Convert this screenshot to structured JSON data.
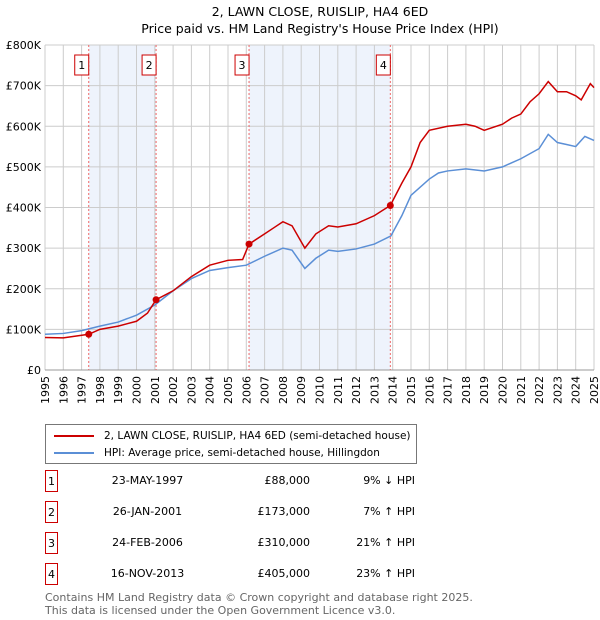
{
  "chart_data": {
    "type": "line",
    "title": "2, LAWN CLOSE, RUISLIP, HA4 6ED",
    "subtitle": "Price paid vs. HM Land Registry's House Price Index (HPI)",
    "xlim": [
      1995,
      2025
    ],
    "ylim": [
      0,
      800000
    ],
    "y_ticks": [
      {
        "v": 0,
        "label": "£0"
      },
      {
        "v": 100000,
        "label": "£100K"
      },
      {
        "v": 200000,
        "label": "£200K"
      },
      {
        "v": 300000,
        "label": "£300K"
      },
      {
        "v": 400000,
        "label": "£400K"
      },
      {
        "v": 500000,
        "label": "£500K"
      },
      {
        "v": 600000,
        "label": "£600K"
      },
      {
        "v": 700000,
        "label": "£700K"
      },
      {
        "v": 800000,
        "label": "£800K"
      }
    ],
    "x_ticks": [
      "1995",
      "1996",
      "1997",
      "1998",
      "1999",
      "2000",
      "2001",
      "2002",
      "2003",
      "2004",
      "2005",
      "2006",
      "2007",
      "2008",
      "2009",
      "2010",
      "2011",
      "2012",
      "2013",
      "2014",
      "2015",
      "2016",
      "2017",
      "2018",
      "2019",
      "2020",
      "2021",
      "2022",
      "2023",
      "2024",
      "2025"
    ],
    "grid": true,
    "series": [
      {
        "name": "2, LAWN CLOSE, RUISLIP, HA4 6ED (semi-detached house)",
        "color": "#cc0000",
        "points": [
          [
            1995,
            80000
          ],
          [
            1996,
            79000
          ],
          [
            1997.39,
            88000
          ],
          [
            1998,
            100000
          ],
          [
            1999,
            108000
          ],
          [
            2000,
            120000
          ],
          [
            2000.6,
            140000
          ],
          [
            2001.07,
            173000
          ],
          [
            2002,
            195000
          ],
          [
            2003,
            230000
          ],
          [
            2004,
            258000
          ],
          [
            2005,
            270000
          ],
          [
            2005.8,
            272000
          ],
          [
            2006.15,
            310000
          ],
          [
            2007,
            335000
          ],
          [
            2007.5,
            350000
          ],
          [
            2008,
            365000
          ],
          [
            2008.5,
            355000
          ],
          [
            2009.2,
            300000
          ],
          [
            2009.8,
            335000
          ],
          [
            2010.5,
            355000
          ],
          [
            2011,
            352000
          ],
          [
            2012,
            360000
          ],
          [
            2013,
            380000
          ],
          [
            2013.87,
            405000
          ],
          [
            2014.5,
            460000
          ],
          [
            2015,
            500000
          ],
          [
            2015.5,
            560000
          ],
          [
            2016,
            590000
          ],
          [
            2017,
            600000
          ],
          [
            2018,
            605000
          ],
          [
            2018.5,
            600000
          ],
          [
            2019,
            590000
          ],
          [
            2020,
            605000
          ],
          [
            2020.5,
            620000
          ],
          [
            2021,
            630000
          ],
          [
            2021.5,
            660000
          ],
          [
            2022,
            680000
          ],
          [
            2022.5,
            710000
          ],
          [
            2023,
            685000
          ],
          [
            2023.5,
            685000
          ],
          [
            2024,
            675000
          ],
          [
            2024.3,
            665000
          ],
          [
            2024.8,
            705000
          ],
          [
            2025,
            695000
          ]
        ]
      },
      {
        "name": "HPI: Average price, semi-detached house, Hillingdon",
        "color": "#5b8fd6",
        "points": [
          [
            1995,
            88000
          ],
          [
            1996,
            90000
          ],
          [
            1997,
            97000
          ],
          [
            1998,
            108000
          ],
          [
            1999,
            118000
          ],
          [
            2000,
            135000
          ],
          [
            2001,
            160000
          ],
          [
            2002,
            195000
          ],
          [
            2003,
            225000
          ],
          [
            2004,
            245000
          ],
          [
            2005,
            252000
          ],
          [
            2006,
            258000
          ],
          [
            2007,
            280000
          ],
          [
            2008,
            300000
          ],
          [
            2008.5,
            295000
          ],
          [
            2009.2,
            250000
          ],
          [
            2009.8,
            275000
          ],
          [
            2010.5,
            295000
          ],
          [
            2011,
            292000
          ],
          [
            2012,
            298000
          ],
          [
            2013,
            310000
          ],
          [
            2013.9,
            330000
          ],
          [
            2014.5,
            380000
          ],
          [
            2015,
            430000
          ],
          [
            2016,
            470000
          ],
          [
            2016.5,
            485000
          ],
          [
            2017,
            490000
          ],
          [
            2018,
            495000
          ],
          [
            2019,
            490000
          ],
          [
            2020,
            500000
          ],
          [
            2020.5,
            510000
          ],
          [
            2021,
            520000
          ],
          [
            2022,
            545000
          ],
          [
            2022.5,
            580000
          ],
          [
            2023,
            560000
          ],
          [
            2023.5,
            555000
          ],
          [
            2024,
            550000
          ],
          [
            2024.5,
            575000
          ],
          [
            2025,
            565000
          ]
        ]
      }
    ],
    "shaded_ranges": [
      [
        1997.39,
        2001.07
      ],
      [
        2006.15,
        2013.87
      ]
    ],
    "sales": [
      {
        "label": "1",
        "x": 1997.39,
        "price": 88000,
        "date": "23-MAY-1997",
        "price_text": "£88,000",
        "hpi": "9% ↓ HPI"
      },
      {
        "label": "2",
        "x": 2001.07,
        "price": 173000,
        "date": "26-JAN-2001",
        "price_text": "£173,000",
        "hpi": "7% ↑ HPI"
      },
      {
        "label": "3",
        "x": 2006.15,
        "price": 310000,
        "date": "24-FEB-2006",
        "price_text": "£310,000",
        "hpi": "21% ↑ HPI"
      },
      {
        "label": "4",
        "x": 2013.87,
        "price": 405000,
        "date": "16-NOV-2013",
        "price_text": "£405,000",
        "hpi": "23% ↑ HPI"
      }
    ],
    "legend_position": "below"
  },
  "footer": {
    "line1": "Contains HM Land Registry data © Crown copyright and database right 2025.",
    "line2": "This data is licensed under the Open Government Licence v3.0."
  }
}
